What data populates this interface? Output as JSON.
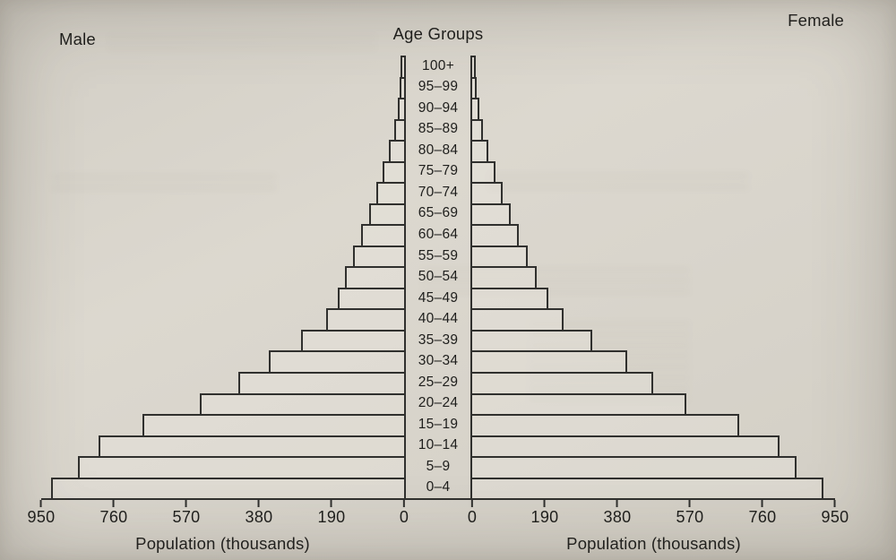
{
  "chart_data": {
    "type": "bar",
    "subtype": "population_pyramid",
    "title": "Age Groups",
    "left_label": "Male",
    "center_label": "Age Groups",
    "right_label": "Female",
    "xlabel": "Population (thousands)",
    "x_ticks": [
      0,
      190,
      380,
      570,
      760,
      950
    ],
    "xlim": [
      0,
      950
    ],
    "grid": false,
    "legend": "none",
    "categories": [
      "0–4",
      "5–9",
      "10–14",
      "15–19",
      "20–24",
      "25–29",
      "30–34",
      "35–39",
      "40–44",
      "45–49",
      "50–54",
      "55–59",
      "60–64",
      "65–69",
      "70–74",
      "75–79",
      "80–84",
      "85–89",
      "90–94",
      "95–99",
      "100+"
    ],
    "series": [
      {
        "name": "Male",
        "values": [
          920,
          850,
          795,
          680,
          530,
          430,
          350,
          265,
          200,
          170,
          150,
          128,
          108,
          88,
          68,
          52,
          35,
          22,
          13,
          8,
          4
        ]
      },
      {
        "name": "Female",
        "values": [
          915,
          845,
          800,
          695,
          555,
          470,
          400,
          310,
          235,
          195,
          165,
          140,
          118,
          96,
          75,
          57,
          38,
          24,
          14,
          8,
          4
        ]
      }
    ]
  }
}
